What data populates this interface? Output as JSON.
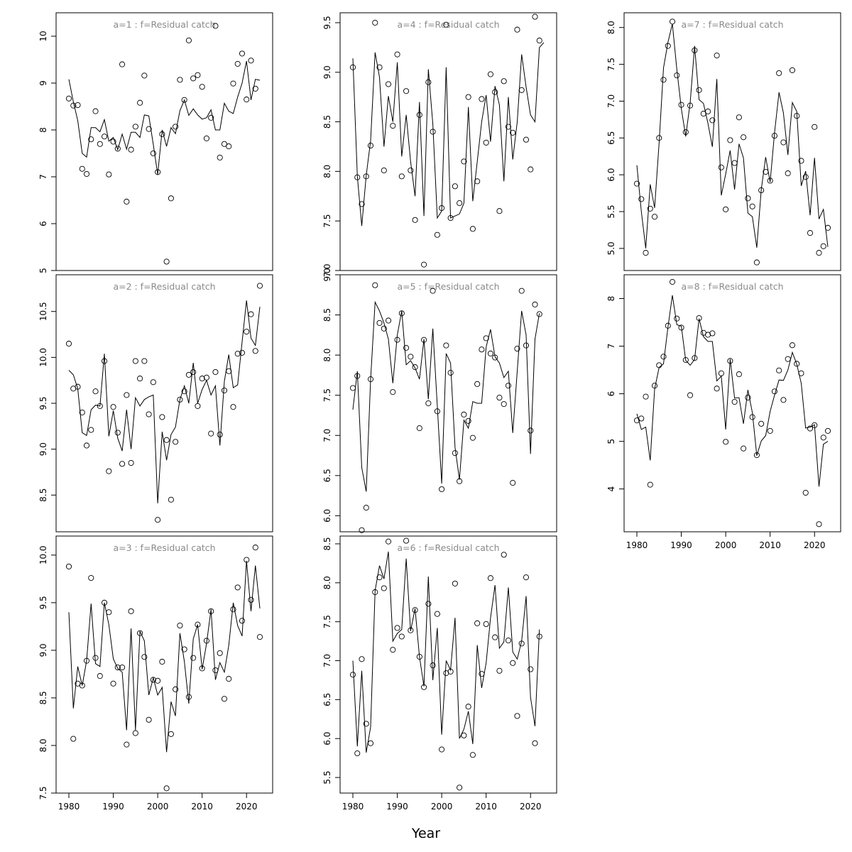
{
  "chart_data": {
    "type": "line",
    "layout": "3x3 multi-panel, column-major",
    "xlabel": "Year",
    "x_start": 1980,
    "x_end": 2023,
    "xlim": [
      1980,
      2023
    ],
    "x_ticks": [
      1980,
      1990,
      2000,
      2010,
      2020
    ],
    "grid": false,
    "line_color": "#000000",
    "point_color": "#000000",
    "title_color": "#8a8a8a",
    "panels": [
      {
        "title": "a=1  :  f=Residual catch",
        "ylim": [
          5,
          10.5
        ],
        "y_ticks": [
          5,
          6,
          7,
          8,
          9,
          10
        ],
        "observed": [
          8.67,
          8.52,
          8.53,
          7.17,
          7.06,
          7.8,
          8.4,
          7.7,
          7.86,
          7.05,
          7.75,
          7.6,
          9.4,
          6.47,
          7.58,
          8.07,
          8.58,
          9.16,
          8.02,
          7.5,
          7.1,
          7.91,
          5.19,
          6.54,
          8.07,
          9.07,
          8.64,
          9.91,
          9.1,
          9.17,
          8.92,
          7.82,
          8.26,
          10.22,
          7.41,
          7.7,
          7.65,
          8.99,
          9.41,
          9.63,
          8.65,
          9.48,
          8.88,
          null
        ],
        "fitted": [
          9.08,
          8.6,
          8.2,
          7.5,
          7.42,
          8.05,
          8.05,
          7.96,
          8.22,
          7.76,
          7.84,
          7.58,
          7.91,
          7.59,
          7.95,
          7.95,
          7.84,
          8.32,
          8.3,
          7.69,
          7.05,
          8.0,
          7.65,
          8.05,
          7.92,
          8.41,
          8.64,
          8.31,
          8.45,
          8.32,
          8.23,
          8.26,
          8.43,
          8.0,
          8.0,
          8.57,
          8.4,
          8.35,
          8.7,
          9.0,
          9.47,
          8.64,
          9.08,
          9.06
        ]
      },
      {
        "title": "a=2  :  f=Residual catch",
        "ylim": [
          8.1,
          10.9
        ],
        "y_ticks": [
          8.5,
          9.0,
          9.5,
          10.0,
          10.5
        ],
        "observed": [
          10.15,
          9.66,
          9.68,
          9.4,
          9.04,
          9.21,
          9.63,
          9.47,
          9.96,
          8.76,
          9.46,
          9.18,
          8.84,
          9.59,
          8.85,
          9.96,
          9.77,
          9.96,
          9.38,
          9.73,
          8.23,
          9.35,
          9.1,
          8.45,
          9.08,
          9.54,
          9.63,
          9.81,
          9.84,
          9.47,
          9.77,
          9.78,
          9.17,
          9.84,
          9.16,
          9.64,
          9.85,
          9.46,
          10.04,
          10.05,
          10.28,
          10.47,
          10.07,
          10.78
        ],
        "fitted": [
          9.86,
          9.81,
          9.66,
          9.18,
          9.15,
          9.43,
          9.48,
          9.47,
          10.04,
          9.14,
          9.42,
          9.12,
          8.98,
          9.43,
          9.0,
          9.56,
          9.47,
          9.54,
          9.57,
          9.59,
          8.41,
          9.19,
          8.88,
          9.16,
          9.24,
          9.54,
          9.69,
          9.5,
          9.94,
          9.5,
          9.65,
          9.75,
          9.59,
          9.69,
          9.04,
          9.74,
          10.03,
          9.67,
          9.7,
          10.17,
          10.62,
          10.21,
          10.13,
          10.55
        ]
      },
      {
        "title": "a=3  :  f=Residual catch",
        "ylim": [
          7.5,
          10.2
        ],
        "y_ticks": [
          7.5,
          8.0,
          8.5,
          9.0,
          9.5,
          10.0
        ],
        "observed": [
          9.88,
          8.07,
          8.65,
          8.63,
          8.89,
          9.76,
          8.92,
          8.73,
          9.5,
          9.4,
          8.65,
          8.82,
          8.82,
          8.01,
          9.41,
          8.13,
          9.18,
          8.93,
          8.27,
          8.69,
          8.68,
          8.88,
          7.55,
          8.12,
          8.59,
          9.26,
          9.01,
          8.51,
          8.92,
          9.27,
          8.81,
          9.1,
          9.41,
          8.79,
          8.97,
          8.49,
          8.7,
          9.43,
          9.66,
          9.31,
          9.95,
          9.53,
          10.08,
          9.14
        ],
        "fitted": [
          9.4,
          8.39,
          8.83,
          8.63,
          8.89,
          9.49,
          8.86,
          8.83,
          9.5,
          9.27,
          8.91,
          8.81,
          8.77,
          8.16,
          9.23,
          8.16,
          9.2,
          9.1,
          8.53,
          8.71,
          8.53,
          8.61,
          7.93,
          8.46,
          8.31,
          9.18,
          8.88,
          8.44,
          9.12,
          9.27,
          8.8,
          9.07,
          9.43,
          8.69,
          8.87,
          8.77,
          9.05,
          9.5,
          9.26,
          9.15,
          9.94,
          9.41,
          9.89,
          9.44
        ]
      },
      {
        "title": "a=4  :  f=Residual catch",
        "ylim": [
          7.0,
          9.6
        ],
        "y_ticks": [
          7.0,
          7.5,
          8.0,
          8.5,
          9.0,
          9.5
        ],
        "observed": [
          9.05,
          7.94,
          7.67,
          7.95,
          8.26,
          9.5,
          9.05,
          8.01,
          8.88,
          8.46,
          9.18,
          7.95,
          8.81,
          8.01,
          7.51,
          8.57,
          7.06,
          8.9,
          8.4,
          7.36,
          7.63,
          9.48,
          7.53,
          7.85,
          7.68,
          8.1,
          8.75,
          7.42,
          7.9,
          8.73,
          8.29,
          8.98,
          8.8,
          7.6,
          8.91,
          8.45,
          8.39,
          9.43,
          8.82,
          8.32,
          8.02,
          9.56,
          9.32,
          null
        ],
        "fitted": [
          9.14,
          7.95,
          7.45,
          7.96,
          8.31,
          9.2,
          8.95,
          8.25,
          8.76,
          8.5,
          9.1,
          8.15,
          8.57,
          8.1,
          7.75,
          8.7,
          7.55,
          9.03,
          8.48,
          7.53,
          7.6,
          9.05,
          7.53,
          7.55,
          7.57,
          7.68,
          8.65,
          7.7,
          8.1,
          8.5,
          8.77,
          8.3,
          8.86,
          8.67,
          7.9,
          8.75,
          8.12,
          8.5,
          9.18,
          8.85,
          8.57,
          8.5,
          9.25,
          9.3
        ]
      },
      {
        "title": "a=5  :  f=Residual catch",
        "ylim": [
          5.8,
          9.0
        ],
        "y_ticks": [
          6.0,
          6.5,
          7.0,
          7.5,
          8.0,
          8.5,
          9.0
        ],
        "observed": [
          7.59,
          7.74,
          5.82,
          6.1,
          7.7,
          8.87,
          8.4,
          8.33,
          8.43,
          7.54,
          8.19,
          8.52,
          8.09,
          7.98,
          7.85,
          7.09,
          8.19,
          7.4,
          8.8,
          7.3,
          6.33,
          8.12,
          7.78,
          6.78,
          6.43,
          7.26,
          7.18,
          6.97,
          7.64,
          8.07,
          8.21,
          8.02,
          7.97,
          7.47,
          7.39,
          7.62,
          6.41,
          8.08,
          8.8,
          8.12,
          7.06,
          8.63,
          8.51,
          null
        ],
        "fitted": [
          7.32,
          7.8,
          6.6,
          6.3,
          7.7,
          8.66,
          8.55,
          8.4,
          8.2,
          7.65,
          8.25,
          8.55,
          7.88,
          7.93,
          7.84,
          7.7,
          8.2,
          7.45,
          8.33,
          7.37,
          6.4,
          8.02,
          7.9,
          6.85,
          6.45,
          7.19,
          7.09,
          7.42,
          7.4,
          7.4,
          8.1,
          8.32,
          7.98,
          7.9,
          7.72,
          7.8,
          7.03,
          7.8,
          8.55,
          8.25,
          6.77,
          8.2,
          8.52,
          null
        ]
      },
      {
        "title": "a=6  :  f=Residual catch",
        "ylim": [
          5.3,
          8.6
        ],
        "y_ticks": [
          5.5,
          6.0,
          6.5,
          7.0,
          7.5,
          8.0,
          8.5
        ],
        "observed": [
          6.82,
          5.81,
          7.02,
          6.19,
          5.94,
          7.88,
          8.07,
          7.93,
          8.53,
          7.14,
          7.42,
          7.31,
          8.54,
          7.39,
          7.65,
          7.05,
          6.66,
          7.73,
          6.94,
          7.6,
          5.86,
          6.84,
          6.86,
          7.99,
          5.37,
          6.04,
          6.41,
          5.79,
          7.48,
          6.83,
          7.47,
          8.06,
          7.3,
          6.87,
          8.36,
          7.26,
          6.97,
          6.29,
          7.22,
          8.07,
          6.89,
          5.94,
          7.31,
          null
        ],
        "fitted": [
          7.0,
          5.9,
          6.87,
          5.82,
          6.15,
          7.9,
          8.22,
          8.05,
          8.4,
          7.25,
          7.35,
          7.4,
          8.31,
          7.38,
          7.67,
          7.05,
          6.67,
          8.08,
          6.75,
          7.42,
          6.05,
          7.0,
          6.88,
          7.55,
          6.0,
          6.12,
          6.35,
          5.93,
          7.2,
          6.65,
          6.97,
          7.55,
          7.97,
          7.16,
          7.24,
          7.94,
          7.11,
          7.02,
          7.25,
          7.83,
          6.53,
          6.16,
          7.4,
          null
        ]
      },
      {
        "title": "a=7  :  f=Residual catch",
        "ylim": [
          4.7,
          8.2
        ],
        "y_ticks": [
          5.0,
          5.5,
          6.0,
          6.5,
          7.0,
          7.5,
          8.0
        ],
        "observed": [
          5.88,
          5.67,
          4.94,
          5.54,
          5.43,
          6.5,
          7.29,
          7.75,
          8.08,
          7.35,
          6.95,
          6.58,
          6.94,
          7.69,
          7.15,
          6.83,
          6.86,
          6.74,
          7.62,
          6.1,
          5.53,
          6.47,
          6.16,
          6.78,
          6.51,
          5.68,
          5.57,
          4.81,
          5.79,
          6.04,
          5.92,
          6.53,
          7.38,
          6.44,
          6.02,
          7.42,
          6.8,
          6.19,
          5.97,
          5.21,
          6.65,
          4.94,
          5.03,
          5.28
        ],
        "fitted": [
          6.13,
          5.5,
          5.0,
          5.87,
          5.55,
          6.43,
          7.45,
          7.8,
          8.05,
          7.43,
          6.9,
          6.52,
          6.98,
          7.75,
          7.02,
          6.97,
          6.7,
          6.38,
          7.3,
          5.72,
          6.01,
          6.33,
          5.8,
          6.42,
          6.23,
          5.48,
          5.43,
          5.01,
          5.8,
          6.24,
          5.9,
          6.57,
          7.12,
          6.84,
          6.27,
          6.98,
          6.86,
          5.85,
          6.05,
          5.45,
          6.23,
          5.4,
          5.53,
          5.02
        ]
      },
      {
        "title": "a=8  :  f=Residual catch",
        "ylim": [
          3.1,
          8.5
        ],
        "y_ticks": [
          4,
          5,
          6,
          7,
          8
        ],
        "observed": [
          5.44,
          5.48,
          5.94,
          4.09,
          6.17,
          6.6,
          6.78,
          7.43,
          8.35,
          7.58,
          7.39,
          6.71,
          5.97,
          6.75,
          7.59,
          7.28,
          7.24,
          7.27,
          6.11,
          6.43,
          4.99,
          6.69,
          5.83,
          6.41,
          4.85,
          5.92,
          5.51,
          4.71,
          5.37,
          null,
          5.22,
          6.05,
          6.49,
          5.87,
          6.73,
          7.02,
          6.63,
          6.43,
          3.92,
          5.27,
          5.34,
          3.26,
          5.08,
          5.22
        ],
        "fitted": [
          5.58,
          5.25,
          5.3,
          4.6,
          6.1,
          6.55,
          6.63,
          7.4,
          8.07,
          7.45,
          7.42,
          6.7,
          6.6,
          6.72,
          7.58,
          7.2,
          7.1,
          7.1,
          6.27,
          6.37,
          5.25,
          6.73,
          5.91,
          5.92,
          5.37,
          6.08,
          5.6,
          4.7,
          5.01,
          5.12,
          5.63,
          5.97,
          6.29,
          6.28,
          6.5,
          6.87,
          6.62,
          6.22,
          5.28,
          5.3,
          5.35,
          4.05,
          4.94,
          5.0
        ]
      }
    ]
  }
}
